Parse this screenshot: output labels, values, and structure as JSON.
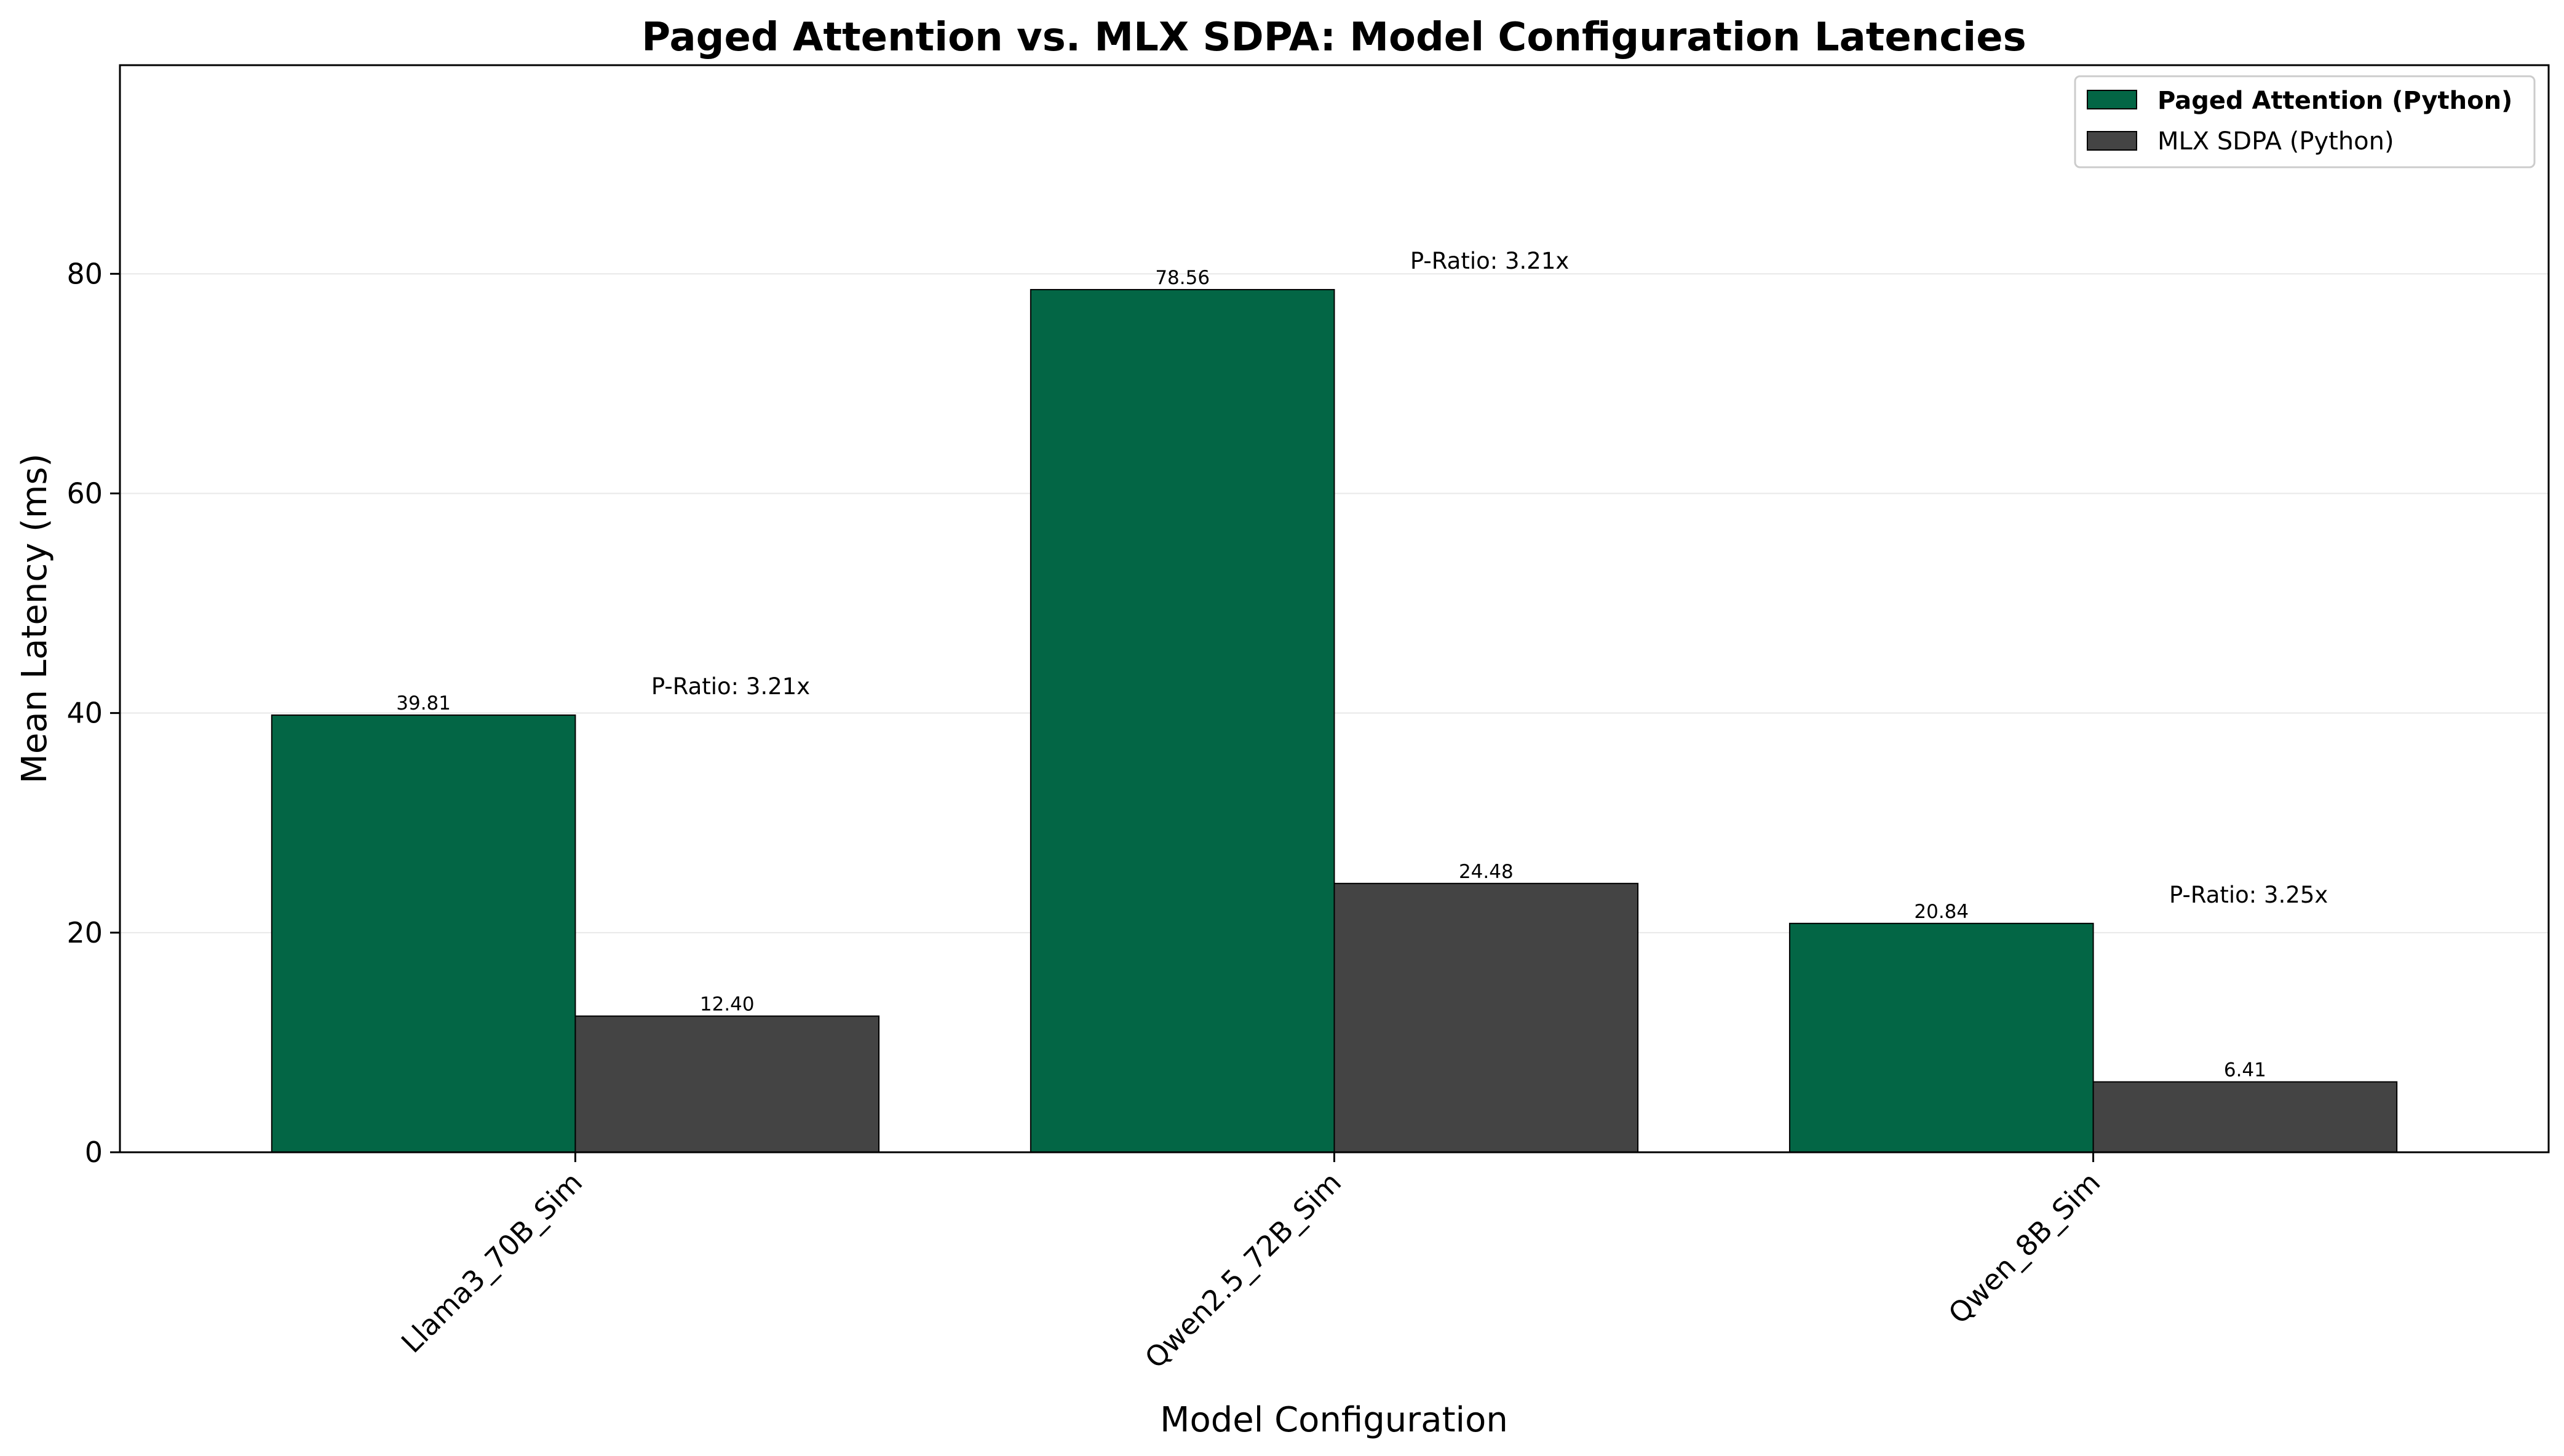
{
  "chart_data": {
    "type": "bar",
    "title": "Paged Attention vs. MLX SDPA: Model Configuration Latencies",
    "xlabel": "Model Configuration",
    "ylabel": "Mean Latency (ms)",
    "ylim": [
      0,
      99
    ],
    "yticks": [
      0,
      20,
      40,
      60,
      80
    ],
    "grid": "horizontal",
    "legend_position": "top-right",
    "categories": [
      "Llama3_70B_Sim",
      "Qwen2.5_72B_Sim",
      "Qwen_8B_Sim"
    ],
    "series": [
      {
        "name": "Paged Attention (Python)",
        "color": "#036645",
        "values": [
          39.81,
          78.56,
          20.84
        ],
        "labels": [
          "39.81",
          "78.56",
          "20.84"
        ],
        "legend_bold": true
      },
      {
        "name": "MLX SDPA (Python)",
        "color": "#444444",
        "values": [
          12.4,
          24.48,
          6.41
        ],
        "labels": [
          "12.40",
          "24.48",
          "6.41"
        ],
        "legend_bold": false
      }
    ],
    "annotations": [
      "P-Ratio: 3.21x",
      "P-Ratio: 3.21x",
      "P-Ratio: 3.25x"
    ]
  }
}
